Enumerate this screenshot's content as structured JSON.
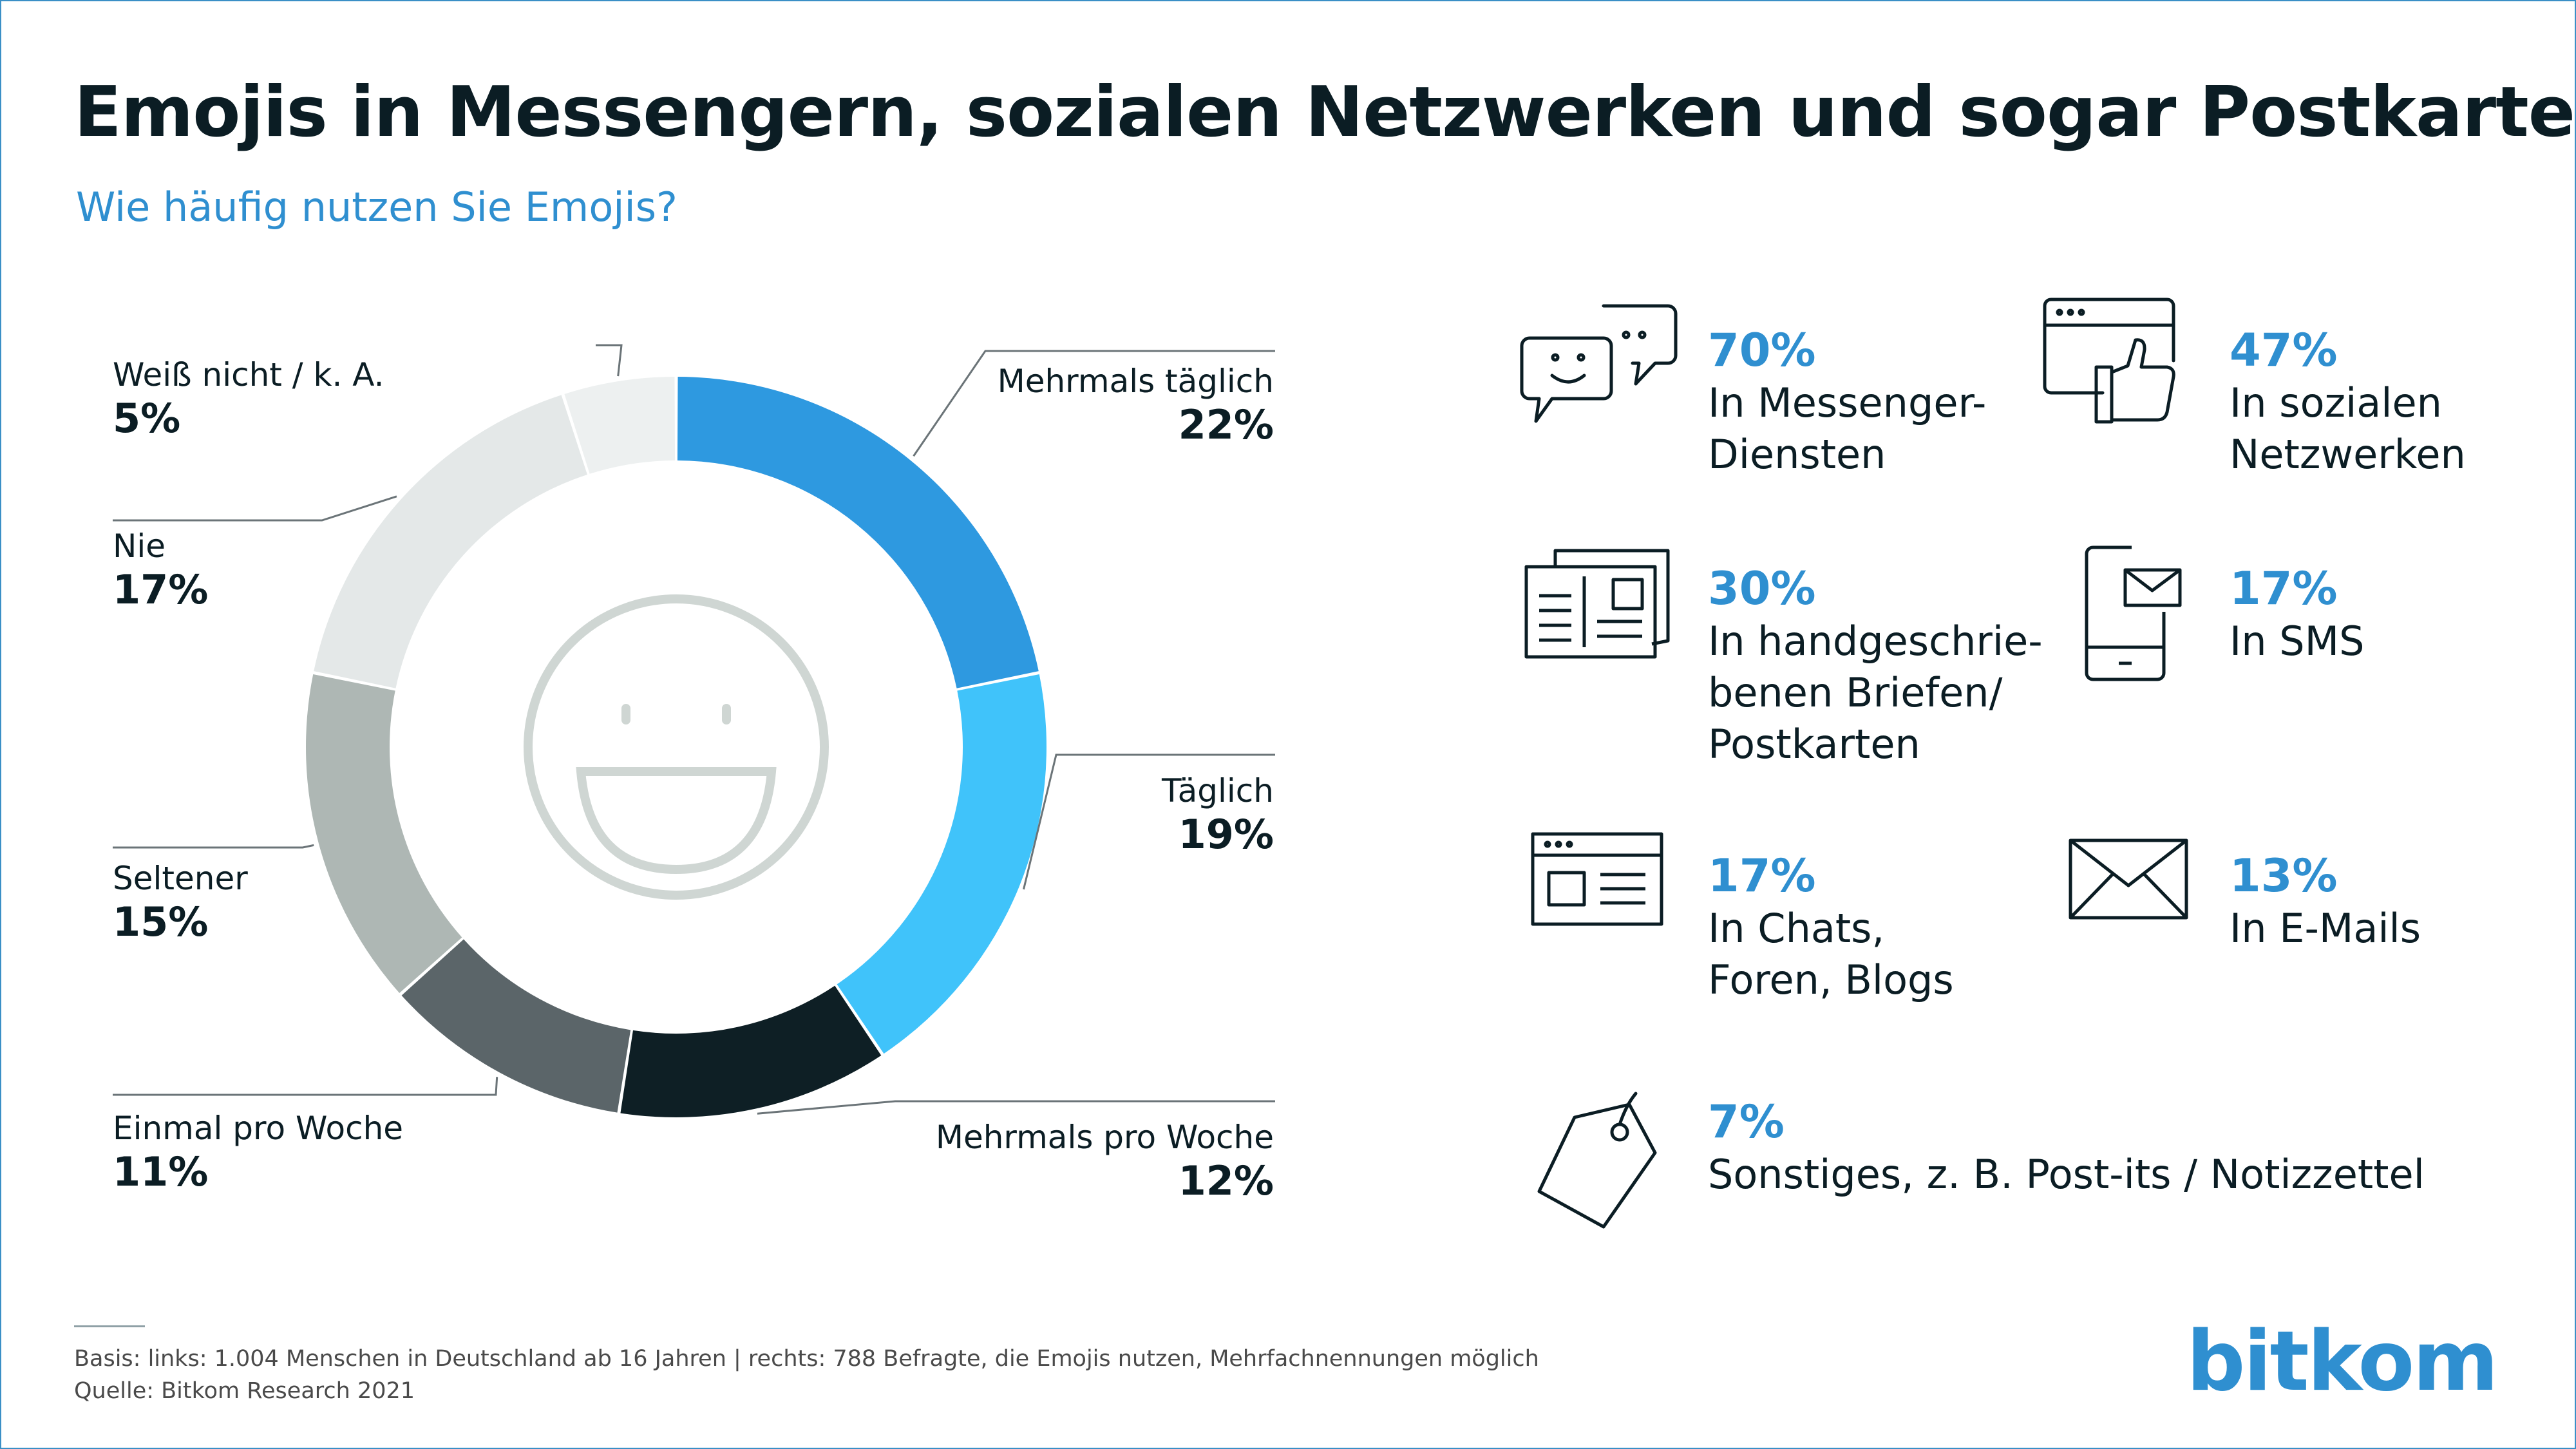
{
  "title": "Emojis in Messengern, sozialen Netzwerken und sogar Postkarten",
  "subtitle": "Wie häufig nutzen Sie Emojis?",
  "chart_data": {
    "type": "pie",
    "donut": true,
    "title": "Wie häufig nutzen Sie Emojis?",
    "categories": [
      "Mehrmals täglich",
      "Täglich",
      "Mehrmals pro Woche",
      "Einmal pro Woche",
      "Seltener",
      "Nie",
      "Weiß nicht / k. A."
    ],
    "values": [
      22,
      19,
      12,
      11,
      15,
      17,
      5
    ],
    "value_labels": [
      "22%",
      "19%",
      "12%",
      "11%",
      "15%",
      "17%",
      "5%"
    ],
    "colors": [
      "#2e99e0",
      "#40c3fa",
      "#0e1f25",
      "#5b6569",
      "#aeb7b4",
      "#e4e8e8",
      "#edf0f0"
    ]
  },
  "stats": [
    {
      "value": "70%",
      "label": "In Messenger-\nDiensten",
      "icon": "chat-bubbles-icon"
    },
    {
      "value": "47%",
      "label": "In sozialen\nNetzwerken",
      "icon": "social-like-icon"
    },
    {
      "value": "30%",
      "label": "In handgeschrie-\nbenen Briefen/\nPostkarten",
      "icon": "postcard-icon"
    },
    {
      "value": "17%",
      "label": "In SMS",
      "icon": "smartphone-mail-icon"
    },
    {
      "value": "17%",
      "label": "In Chats,\nForen, Blogs",
      "icon": "browser-window-icon"
    },
    {
      "value": "13%",
      "label": "In E-Mails",
      "icon": "envelope-icon"
    },
    {
      "value": "7%",
      "label": "Sonstiges, z. B. Post-its / Notizzettel",
      "icon": "tag-icon"
    }
  ],
  "footnote": {
    "basis": "Basis: links: 1.004 Menschen in Deutschland ab 16 Jahren | rechts: 788 Befragte, die Emojis nutzen, Mehrfachnennungen möglich",
    "source": "Quelle: Bitkom Research 2021"
  },
  "logo": "bitkom",
  "colors": {
    "accent": "#2f8fd0",
    "text": "#0b1d24",
    "frame": "#3a8fc6",
    "smiley": "#cfd6d3"
  }
}
